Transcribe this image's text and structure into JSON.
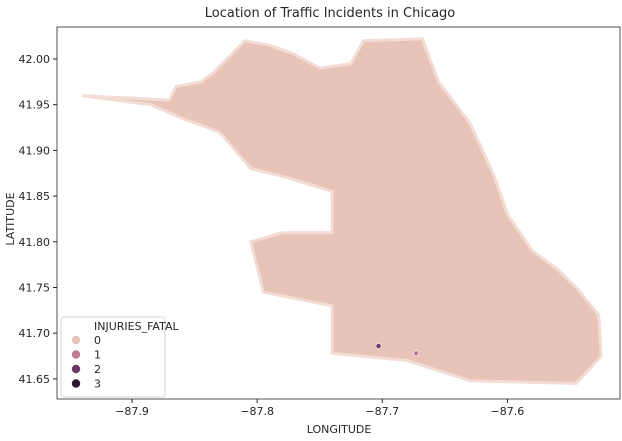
{
  "chart_data": {
    "type": "scatter",
    "title": "Location of Traffic Incidents in Chicago",
    "xlabel": "LONGITUDE",
    "ylabel": "LATITUDE",
    "xlim": [
      -87.96,
      -87.51
    ],
    "ylim": [
      41.628,
      42.035
    ],
    "xticks": [
      -87.9,
      -87.8,
      -87.7,
      -87.6
    ],
    "xtick_labels": [
      "−87.9",
      "−87.8",
      "−87.7",
      "−87.6"
    ],
    "yticks": [
      41.65,
      41.7,
      41.75,
      41.8,
      41.85,
      41.9,
      41.95,
      42.0
    ],
    "ytick_labels": [
      "41.65",
      "41.70",
      "41.75",
      "41.80",
      "41.85",
      "41.90",
      "41.95",
      "42.00"
    ],
    "grid": false,
    "legend": {
      "title": "INJURIES_FATAL",
      "placement": "lower-left",
      "entries": [
        {
          "label": "0",
          "color": "#e8c4b8"
        },
        {
          "label": "1",
          "color": "#c07a93"
        },
        {
          "label": "2",
          "color": "#6b3a6d"
        },
        {
          "label": "3",
          "color": "#2a1533"
        }
      ]
    },
    "region_outline_lonlat": [
      [
        -87.94,
        41.96
      ],
      [
        -87.87,
        41.955
      ],
      [
        -87.865,
        41.97
      ],
      [
        -87.845,
        41.975
      ],
      [
        -87.835,
        41.985
      ],
      [
        -87.81,
        42.02
      ],
      [
        -87.79,
        42.015
      ],
      [
        -87.77,
        42.005
      ],
      [
        -87.75,
        41.99
      ],
      [
        -87.725,
        41.995
      ],
      [
        -87.715,
        42.02
      ],
      [
        -87.668,
        42.022
      ],
      [
        -87.655,
        41.975
      ],
      [
        -87.63,
        41.93
      ],
      [
        -87.61,
        41.87
      ],
      [
        -87.6,
        41.83
      ],
      [
        -87.58,
        41.79
      ],
      [
        -87.56,
        41.77
      ],
      [
        -87.545,
        41.75
      ],
      [
        -87.527,
        41.72
      ],
      [
        -87.525,
        41.675
      ],
      [
        -87.545,
        41.645
      ],
      [
        -87.63,
        41.648
      ],
      [
        -87.68,
        41.67
      ],
      [
        -87.74,
        41.678
      ],
      [
        -87.74,
        41.73
      ],
      [
        -87.795,
        41.745
      ],
      [
        -87.805,
        41.8
      ],
      [
        -87.78,
        41.81
      ],
      [
        -87.74,
        41.81
      ],
      [
        -87.74,
        41.855
      ],
      [
        -87.775,
        41.87
      ],
      [
        -87.805,
        41.88
      ],
      [
        -87.83,
        41.92
      ],
      [
        -87.86,
        41.935
      ],
      [
        -87.885,
        41.95
      ],
      [
        -87.94,
        41.96
      ]
    ],
    "fatal_points": [
      {
        "x": -87.673,
        "y": 41.678,
        "injuries_fatal": 1
      },
      {
        "x": -87.703,
        "y": 41.686,
        "injuries_fatal": 2
      }
    ]
  }
}
